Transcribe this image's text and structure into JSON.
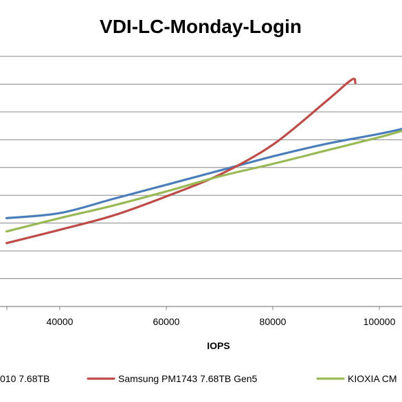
{
  "chart_data": {
    "type": "line",
    "title": "VDI-LC-Monday-Login",
    "xlabel": "IOPS",
    "ylabel": "",
    "xlim": [
      30000,
      105000
    ],
    "x_ticks": [
      40000,
      60000,
      80000,
      100000
    ],
    "x_tick_labels": [
      "40000",
      "60000",
      "80000",
      "100000"
    ],
    "y_gridlines": 10,
    "grid": true,
    "legend_position": "bottom",
    "series": [
      {
        "name": "…010 7.68TB",
        "color": "#4a7ebb",
        "points": [
          [
            30000,
            0.53
          ],
          [
            40000,
            0.56
          ],
          [
            50000,
            0.645
          ],
          [
            60000,
            0.73
          ],
          [
            70000,
            0.815
          ],
          [
            80000,
            0.9
          ],
          [
            90000,
            0.975
          ],
          [
            100000,
            1.035
          ],
          [
            105000,
            1.07
          ]
        ]
      },
      {
        "name": "Samsung PM1743 7.68TB Gen5",
        "color": "#be4b48",
        "points": [
          [
            30000,
            0.38
          ],
          [
            40000,
            0.46
          ],
          [
            50000,
            0.545
          ],
          [
            60000,
            0.66
          ],
          [
            70000,
            0.79
          ],
          [
            80000,
            0.97
          ],
          [
            90000,
            1.23
          ],
          [
            94800,
            1.36
          ],
          [
            95500,
            1.34
          ]
        ]
      },
      {
        "name": "KIOXIA CM…",
        "color": "#98b954",
        "points": [
          [
            30000,
            0.45
          ],
          [
            40000,
            0.53
          ],
          [
            50000,
            0.605
          ],
          [
            60000,
            0.69
          ],
          [
            70000,
            0.78
          ],
          [
            80000,
            0.855
          ],
          [
            90000,
            0.935
          ],
          [
            100000,
            1.015
          ],
          [
            105000,
            1.06
          ]
        ]
      }
    ]
  }
}
